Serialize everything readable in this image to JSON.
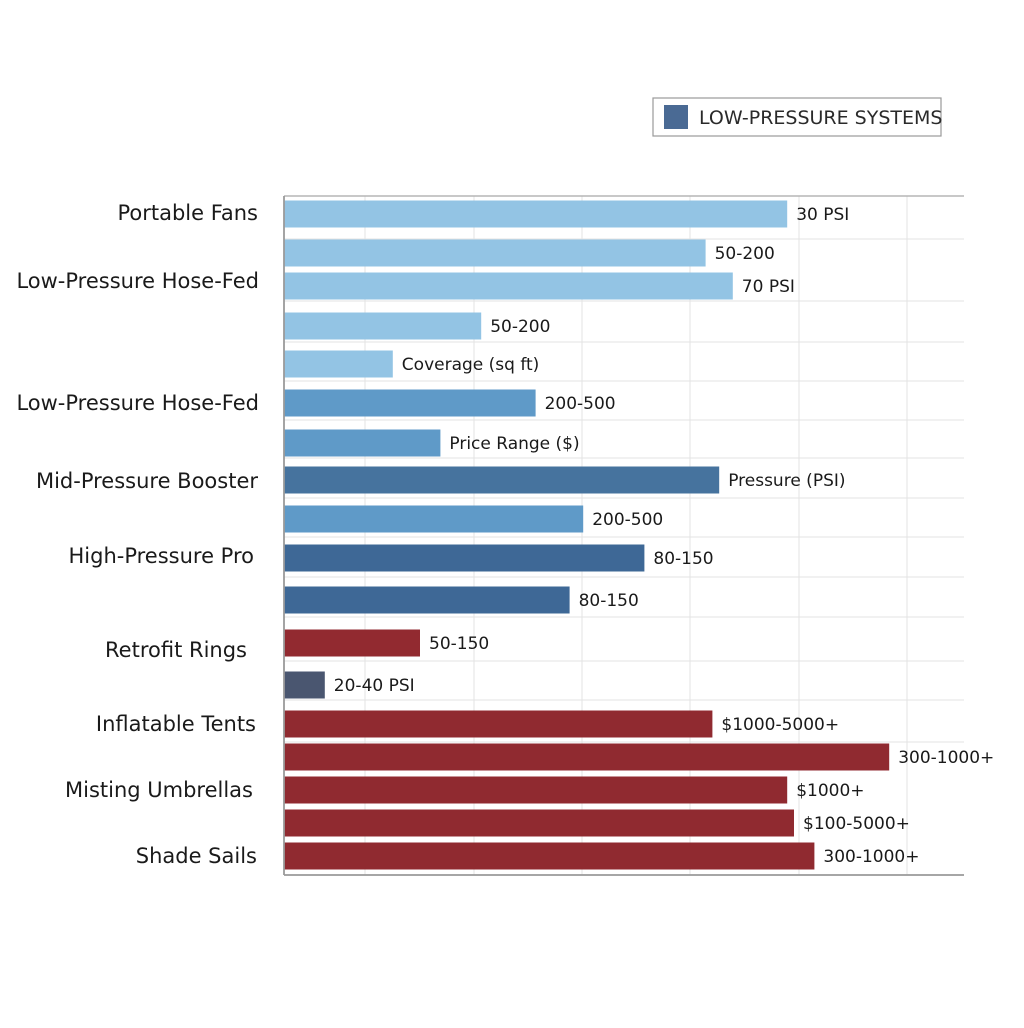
{
  "legend": {
    "label": "LOW-PRESSURE SYSTEMS",
    "swatch_color": "#4a6a94"
  },
  "chart_data": {
    "type": "bar",
    "orientation": "horizontal",
    "title": "",
    "xlabel": "",
    "ylabel": "",
    "grid": true,
    "xlim": [
      0,
      100
    ],
    "legend_placement": "top-right",
    "category_labels": [
      "Portable Fans",
      "Low-Pressure Hose-Fed",
      "Low-Pressure Hose-Fed",
      "Mid-Pressure Booster",
      "High-Pressure Pro",
      "Retrofit Rings",
      "Inflatable Tents",
      "Misting Umbrellas",
      "Shade Sails"
    ],
    "bars": [
      {
        "value": 74,
        "label": "30 PSI",
        "color": "#93c4e4"
      },
      {
        "value": 62,
        "label": "50-200",
        "color": "#93c4e4"
      },
      {
        "value": 66,
        "label": "70 PSI",
        "color": "#93c4e4"
      },
      {
        "value": 29,
        "label": "50-200",
        "color": "#93c4e4"
      },
      {
        "value": 16,
        "label": "Coverage (sq ft)",
        "color": "#93c4e4"
      },
      {
        "value": 37,
        "label": "200-500",
        "color": "#5f9ac8"
      },
      {
        "value": 23,
        "label": "Price Range ($)",
        "color": "#5f9ac8"
      },
      {
        "value": 64,
        "label": "Pressure (PSI)",
        "color": "#46739e"
      },
      {
        "value": 44,
        "label": "200-500",
        "color": "#5f9ac8"
      },
      {
        "value": 53,
        "label": "80-150",
        "color": "#3e6896"
      },
      {
        "value": 42,
        "label": "80-150",
        "color": "#3e6896"
      },
      {
        "value": 20,
        "label": "50-150",
        "color": "#922a30"
      },
      {
        "value": 6,
        "label": "20-40 PSI",
        "color": "#4a5670"
      },
      {
        "value": 63,
        "label": "$1000-5000+",
        "color": "#902a30"
      },
      {
        "value": 89,
        "label": "300-1000+",
        "color": "#902a30"
      },
      {
        "value": 74,
        "label": "$1000+",
        "color": "#902a30"
      },
      {
        "value": 75,
        "label": "$100-5000+",
        "color": "#902a30"
      },
      {
        "value": 78,
        "label": "300-1000+",
        "color": "#902a30"
      }
    ]
  }
}
